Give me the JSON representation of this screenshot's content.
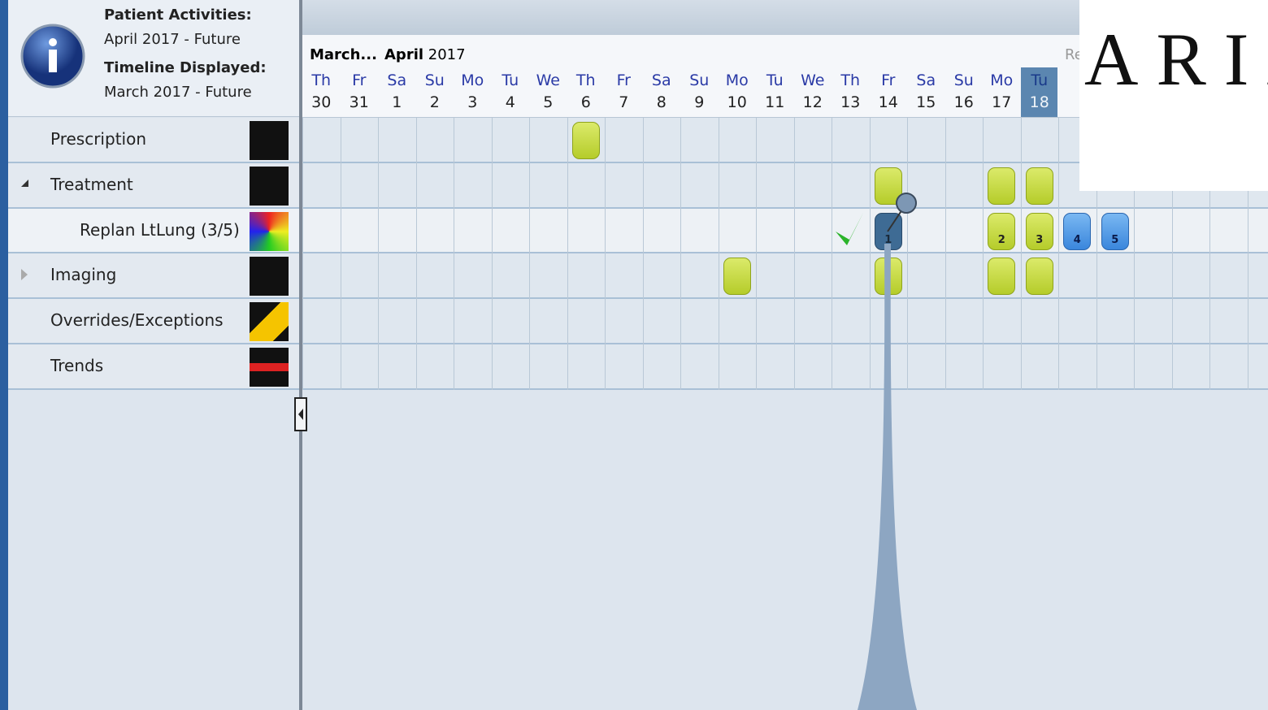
{
  "header": {
    "patient_activities_label": "Patient Activities:",
    "patient_activities_range": "April 2017 - Future",
    "timeline_label": "Timeline Displayed:",
    "timeline_range": "March 2017 - Future"
  },
  "timeline": {
    "months": [
      {
        "name": "March..."
      },
      {
        "name": "April",
        "year": 2017
      }
    ],
    "days": [
      {
        "weekday": "Th",
        "day": 30
      },
      {
        "weekday": "Fr",
        "day": 31
      },
      {
        "weekday": "Sa",
        "day": 1
      },
      {
        "weekday": "Su",
        "day": 2
      },
      {
        "weekday": "Mo",
        "day": 3
      },
      {
        "weekday": "Tu",
        "day": 4
      },
      {
        "weekday": "We",
        "day": 5
      },
      {
        "weekday": "Th",
        "day": 6
      },
      {
        "weekday": "Fr",
        "day": 7
      },
      {
        "weekday": "Sa",
        "day": 8
      },
      {
        "weekday": "Su",
        "day": 9
      },
      {
        "weekday": "Mo",
        "day": 10
      },
      {
        "weekday": "Tu",
        "day": 11
      },
      {
        "weekday": "We",
        "day": 12
      },
      {
        "weekday": "Th",
        "day": 13
      },
      {
        "weekday": "Fr",
        "day": 14
      },
      {
        "weekday": "Sa",
        "day": 15
      },
      {
        "weekday": "Su",
        "day": 16
      },
      {
        "weekday": "Mo",
        "day": 17
      },
      {
        "weekday": "Tu",
        "day": 18
      }
    ],
    "cut_label": "Re"
  },
  "rows": [
    {
      "label": "Prescription"
    },
    {
      "label": "Treatment"
    },
    {
      "label": "Replan LtLung (3/5)"
    },
    {
      "label": "Imaging"
    },
    {
      "label": "Overrides/Exceptions"
    },
    {
      "label": "Trends"
    }
  ],
  "fractions": [
    1,
    2,
    3,
    4,
    5
  ],
  "logo": "ARIA"
}
